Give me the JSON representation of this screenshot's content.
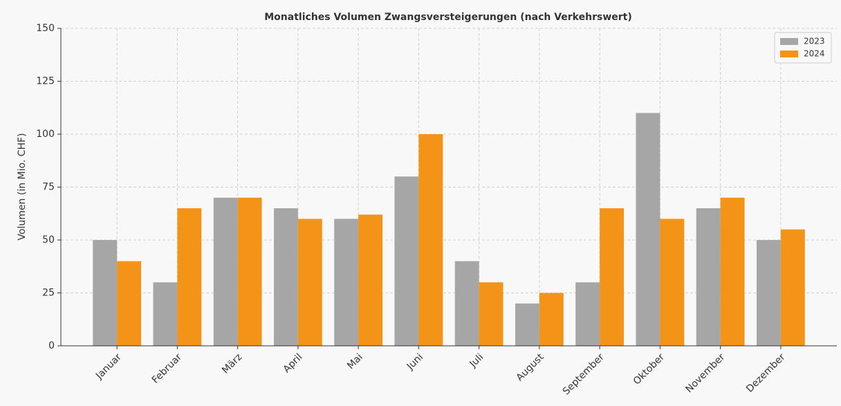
{
  "chart_data": {
    "type": "bar",
    "title": "Monatliches Volumen Zwangsversteigerungen (nach Verkehrswert)",
    "y_label": "Volumen (in Mio. CHF)",
    "categories": [
      "Januar",
      "Februar",
      "März",
      "April",
      "Mai",
      "Juni",
      "Juli",
      "August",
      "September",
      "Oktober",
      "November",
      "Dezember"
    ],
    "series": [
      {
        "name": "2023",
        "color": "#a6a6a6",
        "values": [
          50,
          30,
          70,
          65,
          60,
          80,
          40,
          20,
          30,
          110,
          65,
          50
        ]
      },
      {
        "name": "2024",
        "color": "#f39419",
        "values": [
          40,
          65,
          70,
          60,
          62,
          100,
          30,
          25,
          65,
          60,
          70,
          55
        ]
      }
    ],
    "ylim": [
      0,
      150
    ],
    "yticks": [
      0,
      25,
      50,
      75,
      100,
      125,
      150
    ],
    "grid": true,
    "legend": "upper right"
  }
}
